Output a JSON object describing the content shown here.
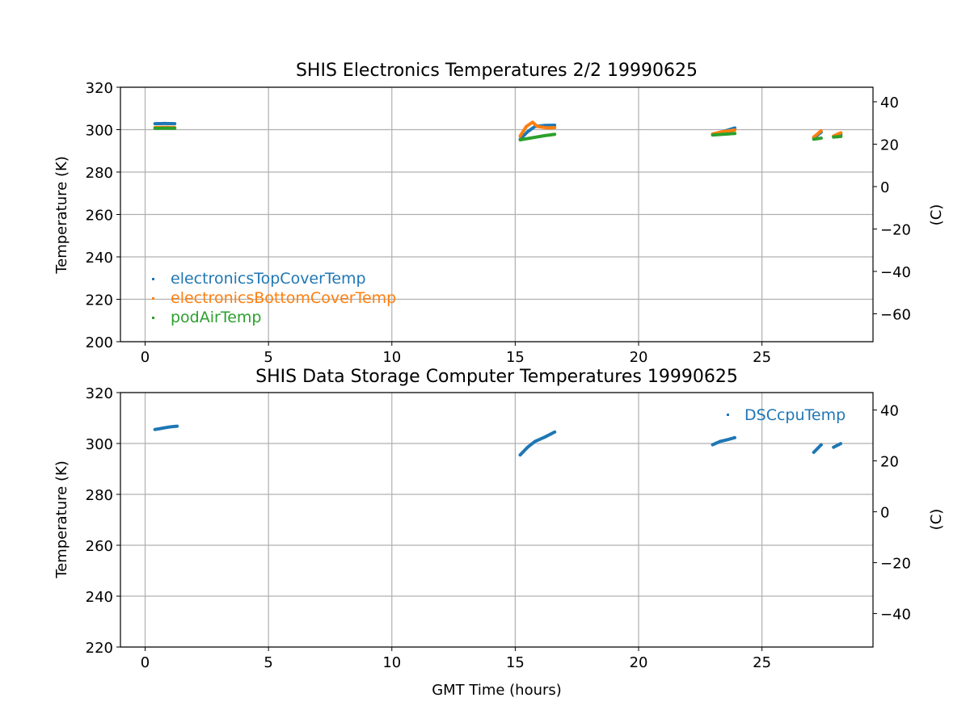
{
  "colors": {
    "tab_blue": "#1f77b4",
    "tab_orange": "#ff7f0e",
    "tab_green": "#2ca02c",
    "grid": "#b0b0b0",
    "axes": "#000000"
  },
  "chart_data": [
    {
      "type": "scatter",
      "title": "SHIS Electronics Temperatures 2/2 19990625",
      "xlabel": "",
      "ylabel": "Temperature (K)",
      "ylabel_right": "(C)",
      "xlim": [
        -1,
        29.5
      ],
      "ylim": [
        200,
        320
      ],
      "xticks": [
        0,
        5,
        10,
        15,
        20,
        25
      ],
      "yticks": [
        200,
        220,
        240,
        260,
        280,
        300,
        320
      ],
      "yticks_right": [
        -60,
        -40,
        -20,
        0,
        20,
        40
      ],
      "grid": true,
      "legend_placement": "lower-left",
      "series": [
        {
          "name": "electronicsTopCoverTemp",
          "color": "#1f77b4",
          "segments": [
            [
              [
                0.4,
                302.8
              ],
              [
                0.8,
                302.9
              ],
              [
                1.2,
                302.8
              ]
            ],
            [
              [
                15.2,
                295.5
              ],
              [
                15.5,
                299.0
              ],
              [
                15.8,
                301.5
              ],
              [
                16.2,
                302.0
              ],
              [
                16.6,
                302.1
              ]
            ],
            [
              [
                23.0,
                297.8
              ],
              [
                23.4,
                299.0
              ],
              [
                23.9,
                300.8
              ]
            ],
            [
              [
                27.1,
                296.0
              ],
              [
                27.4,
                298.8
              ]
            ],
            [
              [
                27.9,
                296.8
              ],
              [
                28.2,
                297.8
              ]
            ]
          ]
        },
        {
          "name": "electronicsBottomCoverTemp",
          "color": "#ff7f0e",
          "segments": [
            [
              [
                0.4,
                301.0
              ],
              [
                0.8,
                301.1
              ],
              [
                1.2,
                301.0
              ]
            ],
            [
              [
                15.2,
                297.0
              ],
              [
                15.45,
                301.5
              ],
              [
                15.7,
                303.5
              ],
              [
                15.9,
                301.5
              ],
              [
                16.3,
                300.8
              ],
              [
                16.6,
                300.9
              ]
            ],
            [
              [
                23.0,
                298.0
              ],
              [
                23.4,
                299.0
              ],
              [
                23.9,
                299.8
              ]
            ],
            [
              [
                27.1,
                296.5
              ],
              [
                27.4,
                299.5
              ]
            ],
            [
              [
                27.9,
                297.0
              ],
              [
                28.2,
                298.5
              ]
            ]
          ]
        },
        {
          "name": "podAirTemp",
          "color": "#2ca02c",
          "segments": [
            [
              [
                0.4,
                300.6
              ],
              [
                0.8,
                300.7
              ],
              [
                1.2,
                300.6
              ]
            ],
            [
              [
                15.2,
                295.2
              ],
              [
                15.7,
                296.2
              ],
              [
                16.2,
                297.2
              ],
              [
                16.6,
                297.8
              ]
            ],
            [
              [
                23.0,
                297.5
              ],
              [
                23.4,
                297.8
              ],
              [
                23.9,
                298.2
              ]
            ],
            [
              [
                27.1,
                295.5
              ],
              [
                27.4,
                296.0
              ]
            ],
            [
              [
                27.9,
                296.5
              ],
              [
                28.2,
                296.8
              ]
            ]
          ]
        }
      ]
    },
    {
      "type": "scatter",
      "title": "SHIS Data Storage Computer Temperatures 19990625",
      "xlabel": "GMT Time (hours)",
      "ylabel": "Temperature (K)",
      "ylabel_right": "(C)",
      "xlim": [
        -1,
        29.5
      ],
      "ylim": [
        220,
        320
      ],
      "xticks": [
        0,
        5,
        10,
        15,
        20,
        25
      ],
      "yticks": [
        220,
        240,
        260,
        280,
        300,
        320
      ],
      "yticks_right": [
        -40,
        -20,
        0,
        20,
        40
      ],
      "grid": true,
      "legend_placement": "top-right",
      "series": [
        {
          "name": "DSCcpuTemp",
          "color": "#1f77b4",
          "segments": [
            [
              [
                0.4,
                305.5
              ],
              [
                0.7,
                306.0
              ],
              [
                1.0,
                306.5
              ],
              [
                1.3,
                306.8
              ]
            ],
            [
              [
                15.2,
                295.5
              ],
              [
                15.5,
                298.5
              ],
              [
                15.8,
                300.8
              ],
              [
                16.2,
                302.5
              ],
              [
                16.6,
                304.5
              ]
            ],
            [
              [
                23.0,
                299.5
              ],
              [
                23.3,
                300.8
              ],
              [
                23.6,
                301.5
              ],
              [
                23.9,
                302.3
              ]
            ],
            [
              [
                27.1,
                296.5
              ],
              [
                27.4,
                299.5
              ]
            ],
            [
              [
                27.9,
                298.5
              ],
              [
                28.2,
                300.0
              ]
            ]
          ]
        }
      ]
    }
  ]
}
